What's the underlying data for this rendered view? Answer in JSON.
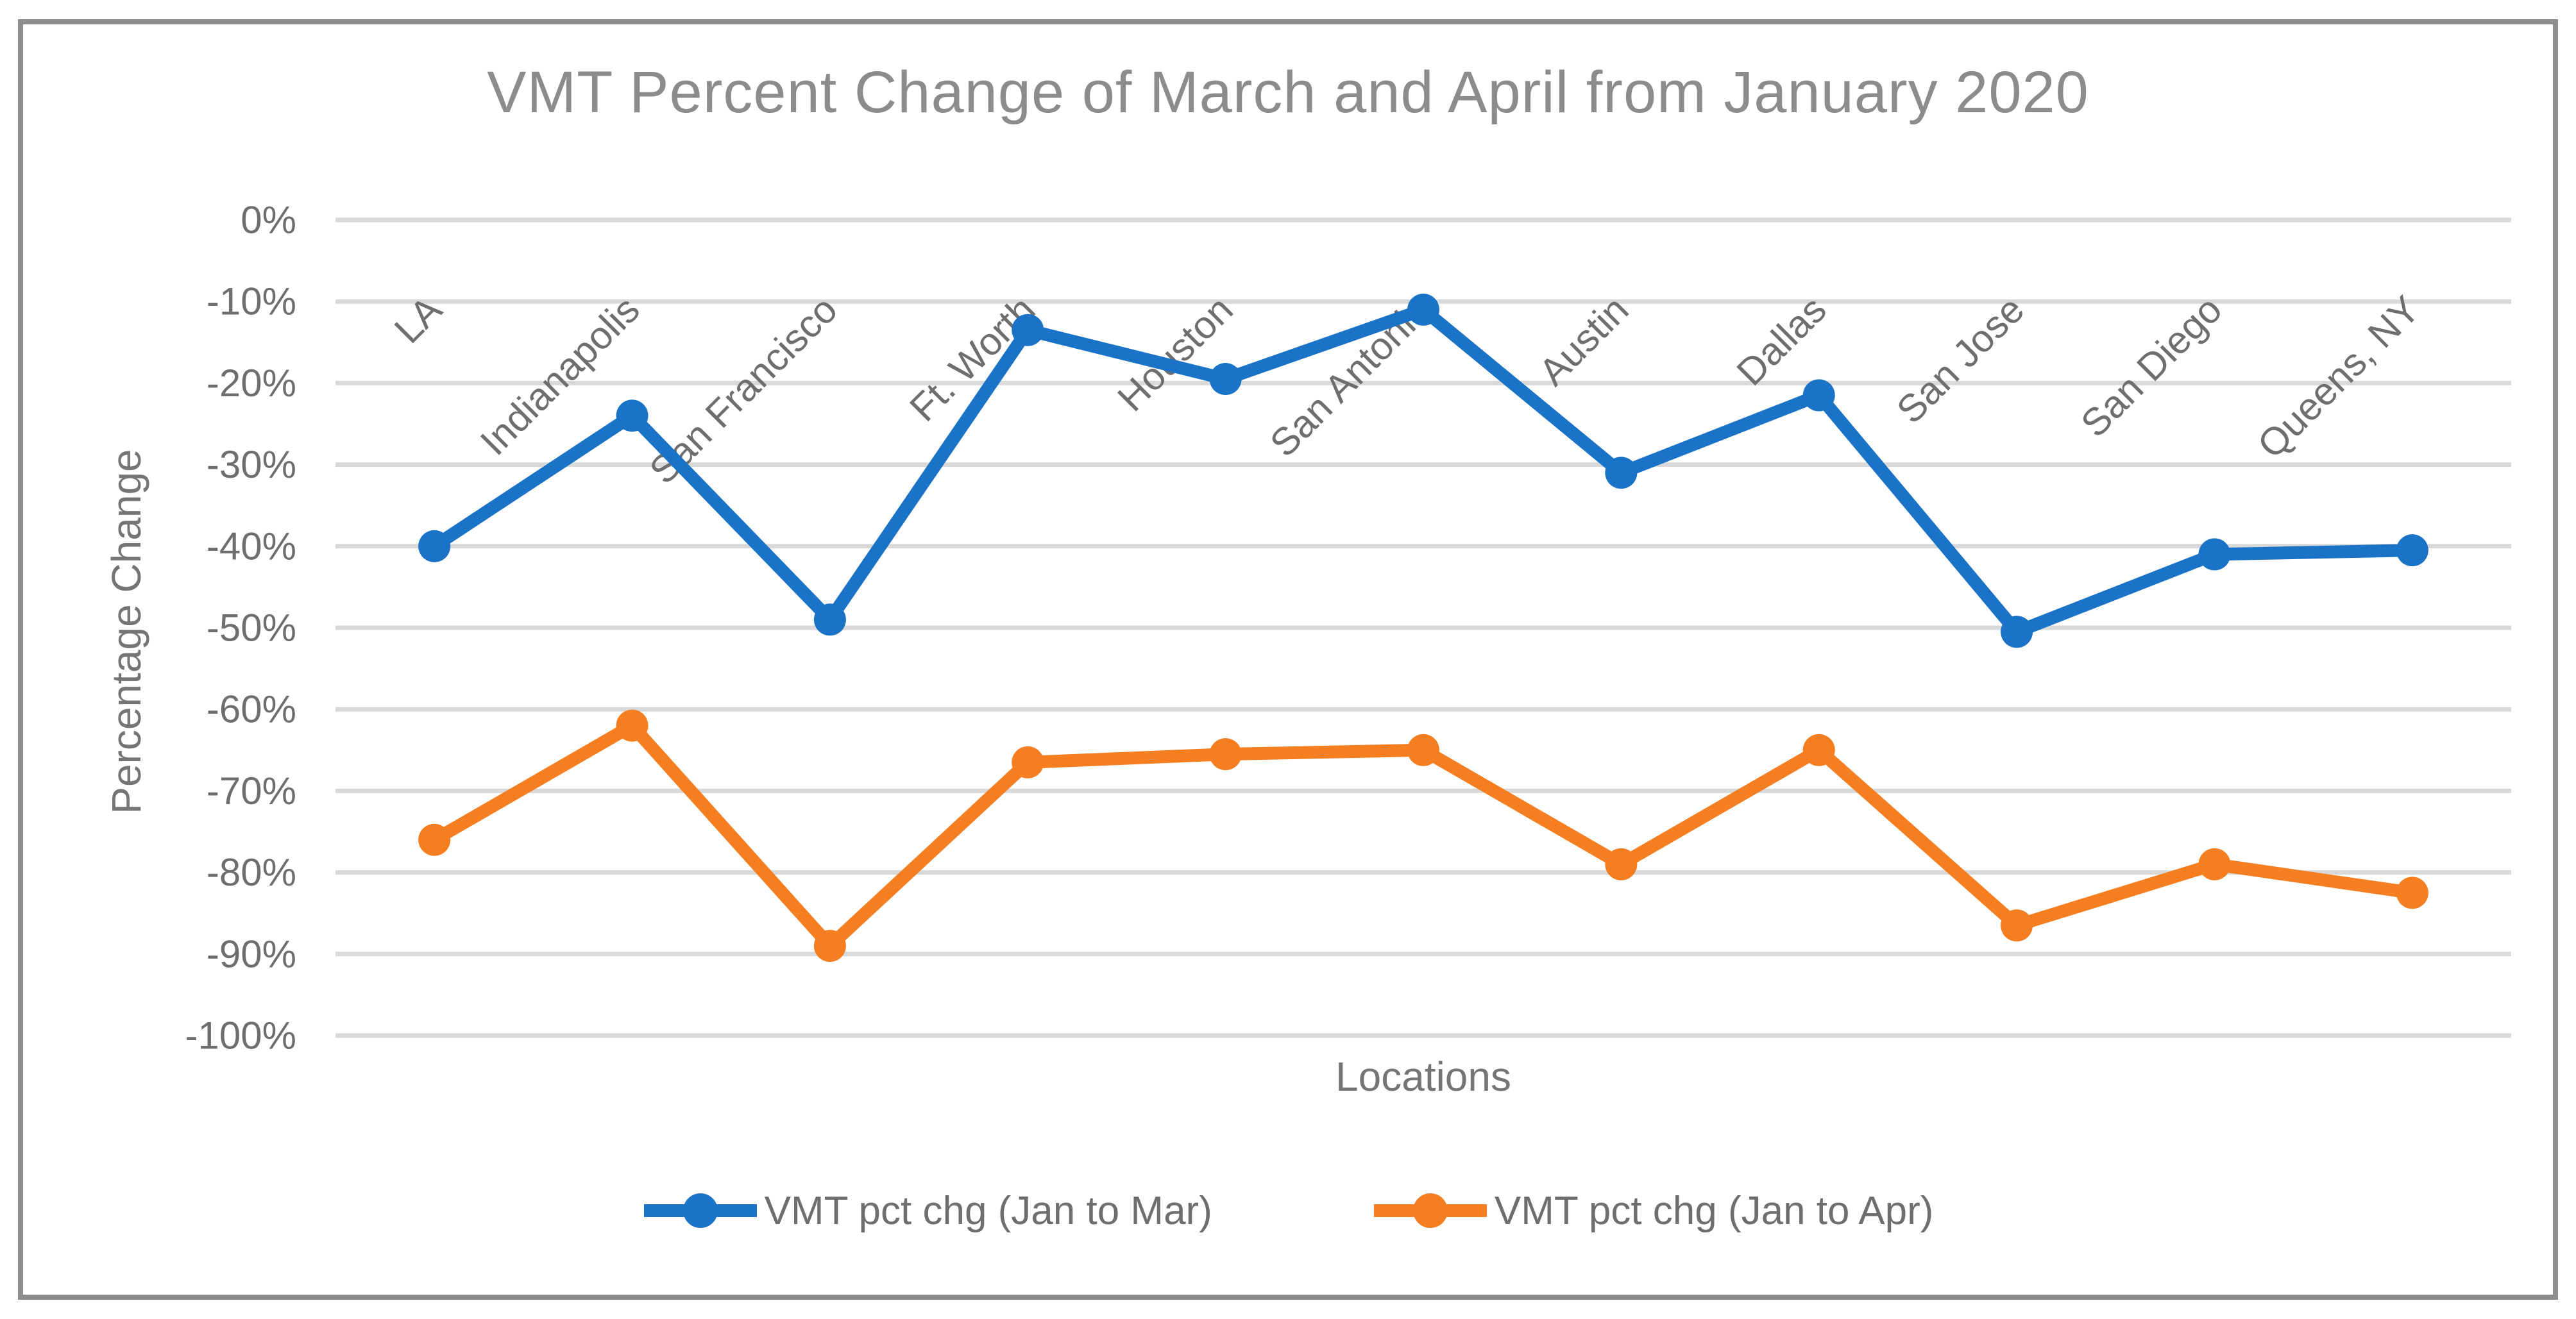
{
  "title": "VMT Percent Change of March and April from January 2020",
  "axes": {
    "y_title": "Percentage Change",
    "x_title": "Locations"
  },
  "colors": {
    "grid": "#d9d9d9",
    "tick_text": "#6e6e6e",
    "axis_title_text": "#757575",
    "title_text": "#8c8c8c",
    "frame_border": "#8c8c8c",
    "series_blue": "#1b73c8",
    "series_orange": "#f57e20"
  },
  "chart_data": {
    "type": "line",
    "title": "VMT Percent Change of March and April from January 2020",
    "xlabel": "Locations",
    "ylabel": "Percentage Change",
    "categories": [
      "LA",
      "Indianapolis",
      "San Francisco",
      "Ft. Worth",
      "Houston",
      "San Antonio",
      "Austin",
      "Dallas",
      "San Jose",
      "San Diego",
      "Queens, NY"
    ],
    "series": [
      {
        "name": "VMT pct chg (Jan to Mar)",
        "color": "#1b73c8",
        "values": [
          -40,
          -24,
          -49,
          -13.5,
          -19.5,
          -11,
          -31,
          -21.5,
          -50.5,
          -41,
          -40.5
        ]
      },
      {
        "name": "VMT pct chg (Jan to Apr)",
        "color": "#f57e20",
        "values": [
          -76,
          -62,
          -89,
          -66.5,
          -65.5,
          -65,
          -79,
          -65,
          -86.5,
          -79,
          -82.5
        ]
      }
    ],
    "ylim": [
      -100,
      0
    ],
    "ytick_step": 10,
    "y_tick_labels": [
      "0%",
      "-10%",
      "-20%",
      "-30%",
      "-40%",
      "-50%",
      "-60%",
      "-70%",
      "-80%",
      "-90%",
      "-100%"
    ],
    "grid": true,
    "marker": "circle",
    "legend_position": "bottom"
  }
}
